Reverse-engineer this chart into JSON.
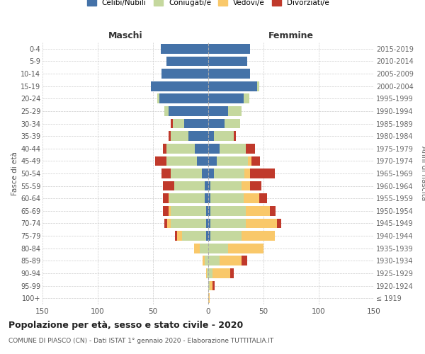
{
  "age_groups": [
    "100+",
    "95-99",
    "90-94",
    "85-89",
    "80-84",
    "75-79",
    "70-74",
    "65-69",
    "60-64",
    "55-59",
    "50-54",
    "45-49",
    "40-44",
    "35-39",
    "30-34",
    "25-29",
    "20-24",
    "15-19",
    "10-14",
    "5-9",
    "0-4"
  ],
  "birth_years": [
    "≤ 1919",
    "1920-1924",
    "1925-1929",
    "1930-1934",
    "1935-1939",
    "1940-1944",
    "1945-1949",
    "1950-1954",
    "1955-1959",
    "1960-1964",
    "1965-1969",
    "1970-1974",
    "1975-1979",
    "1980-1984",
    "1985-1989",
    "1990-1994",
    "1995-1999",
    "2000-2004",
    "2005-2009",
    "2010-2014",
    "2015-2019"
  ],
  "males": {
    "celibi": [
      0,
      0,
      0,
      0,
      0,
      2,
      2,
      2,
      3,
      3,
      6,
      10,
      12,
      18,
      22,
      36,
      44,
      52,
      42,
      38,
      43
    ],
    "coniugati": [
      0,
      0,
      1,
      3,
      8,
      22,
      32,
      32,
      32,
      28,
      28,
      28,
      26,
      16,
      10,
      4,
      2,
      0,
      0,
      0,
      0
    ],
    "vedovi": [
      0,
      0,
      1,
      2,
      5,
      4,
      3,
      2,
      1,
      0,
      0,
      0,
      0,
      0,
      0,
      0,
      0,
      0,
      0,
      0,
      0
    ],
    "divorziati": [
      0,
      0,
      0,
      0,
      0,
      2,
      3,
      5,
      5,
      10,
      8,
      10,
      3,
      2,
      2,
      0,
      0,
      0,
      0,
      0,
      0
    ]
  },
  "females": {
    "nubili": [
      0,
      0,
      0,
      0,
      0,
      2,
      2,
      2,
      2,
      2,
      5,
      8,
      10,
      5,
      15,
      18,
      32,
      44,
      38,
      35,
      38
    ],
    "coniugate": [
      0,
      1,
      4,
      10,
      18,
      28,
      32,
      32,
      30,
      28,
      28,
      28,
      24,
      18,
      14,
      12,
      5,
      2,
      0,
      0,
      0
    ],
    "vedove": [
      1,
      3,
      16,
      20,
      32,
      30,
      28,
      22,
      14,
      8,
      5,
      3,
      0,
      0,
      0,
      0,
      0,
      0,
      0,
      0,
      0
    ],
    "divorziate": [
      0,
      2,
      3,
      5,
      0,
      0,
      4,
      5,
      7,
      10,
      22,
      8,
      8,
      2,
      0,
      0,
      0,
      0,
      0,
      0,
      0
    ]
  },
  "colors": {
    "celibi": "#4472a8",
    "coniugati": "#c5d89e",
    "vedovi": "#f9c86a",
    "divorziati": "#c0392b"
  },
  "xlim": 150,
  "title": "Popolazione per età, sesso e stato civile - 2020",
  "subtitle": "COMUNE DI PIASCO (CN) - Dati ISTAT 1° gennaio 2020 - Elaborazione TUTTITALIA.IT",
  "ylabel_left": "Fasce di età",
  "ylabel_right": "Anni di nascita",
  "xlabel_left": "Maschi",
  "xlabel_right": "Femmine",
  "bg_color": "#ffffff",
  "grid_color": "#cccccc"
}
